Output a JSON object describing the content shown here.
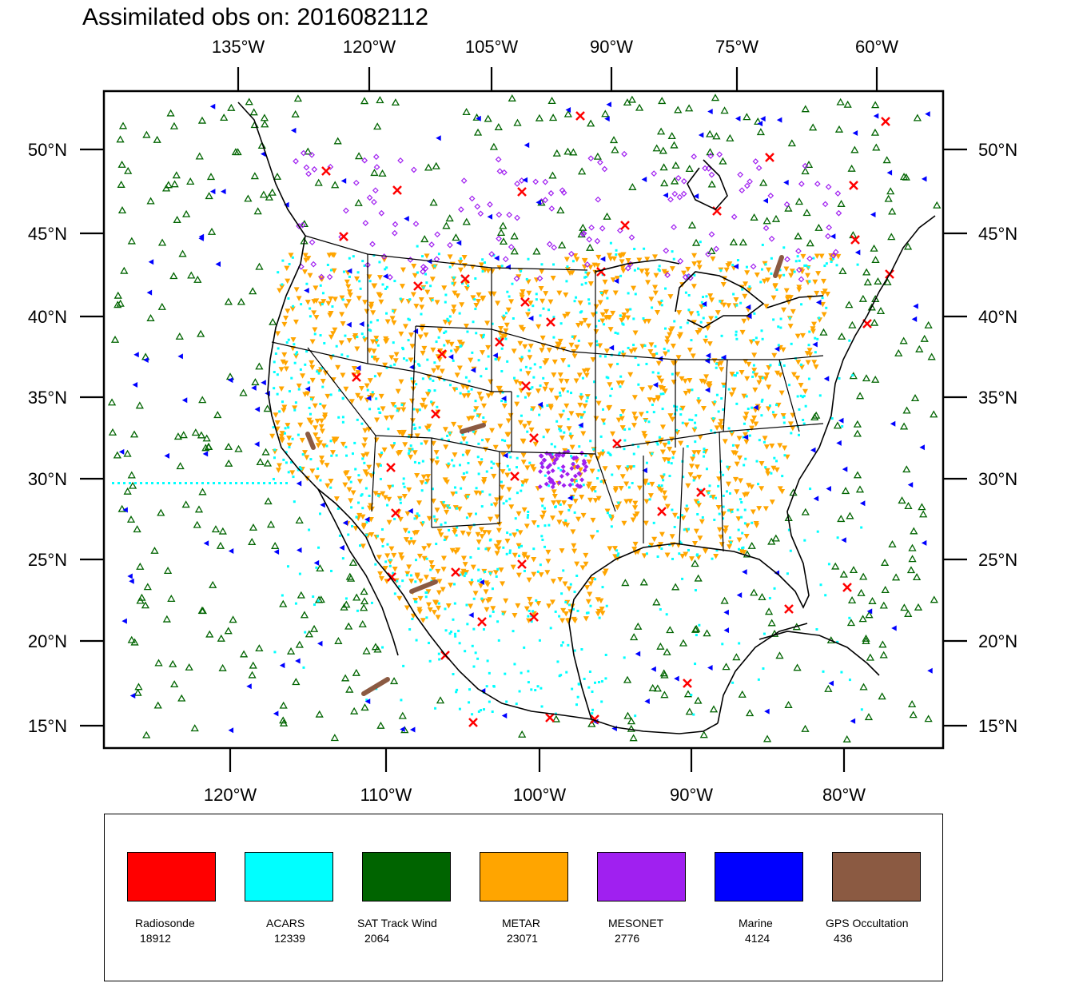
{
  "title": "Assimilated obs on: 2016082112",
  "top_longitude_labels": [
    "135°W",
    "120°W",
    "105°W",
    "90°W",
    "75°W",
    "60°W"
  ],
  "bottom_longitude_labels": [
    "120°W",
    "110°W",
    "100°W",
    "90°W",
    "80°W"
  ],
  "left_latitude_labels": [
    "50°N",
    "45°N",
    "40°N",
    "35°N",
    "30°N",
    "25°N",
    "20°N",
    "15°N"
  ],
  "right_latitude_labels": [
    "50°N",
    "45°N",
    "40°N",
    "35°N",
    "30°N",
    "25°N",
    "20°N",
    "15°N"
  ],
  "legend": [
    {
      "name": "Radiosonde",
      "count": "18912",
      "color": "#ff0000"
    },
    {
      "name": "ACARS",
      "count": "12339",
      "color": "#00ffff"
    },
    {
      "name": "SAT Track Wind",
      "count": "2064",
      "color": "#006400"
    },
    {
      "name": "METAR",
      "count": "23071",
      "color": "#ffa500"
    },
    {
      "name": "MESONET",
      "count": "2776",
      "color": "#a020f0"
    },
    {
      "name": "Marine",
      "count": "4124",
      "color": "#0000ff"
    },
    {
      "name": "GPS Occultation",
      "count": "436",
      "color": "#8b5a42"
    }
  ]
}
